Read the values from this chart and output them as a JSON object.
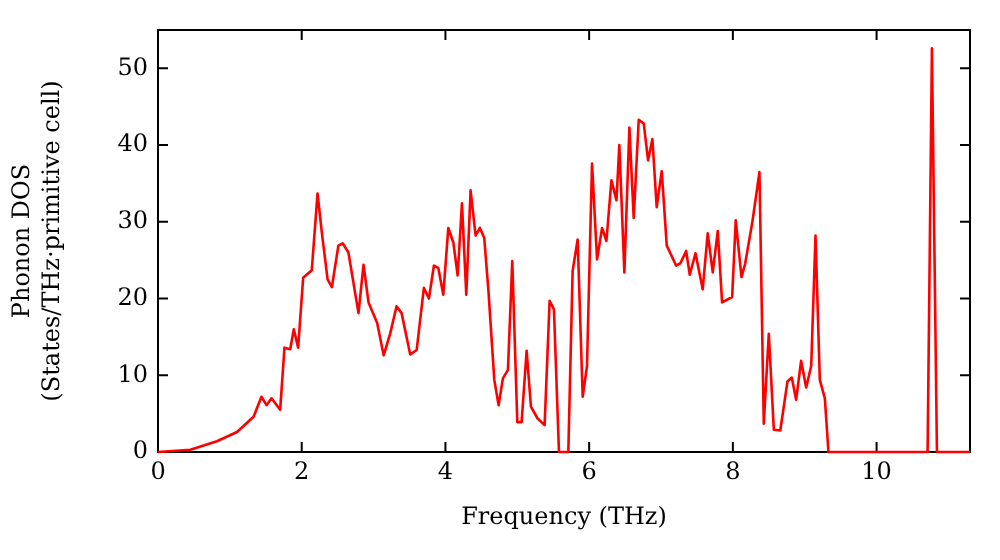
{
  "chart_data": {
    "type": "line",
    "xlabel": "Frequency (THz)",
    "ylabel": "Phonon DOS\n(States/THz·primitive cell)",
    "x": [
      0,
      0.45,
      0.82,
      1.1,
      1.33,
      1.44,
      1.51,
      1.58,
      1.7,
      1.76,
      1.84,
      1.89,
      1.95,
      2.02,
      2.14,
      2.22,
      2.28,
      2.36,
      2.42,
      2.51,
      2.57,
      2.65,
      2.79,
      2.86,
      2.93,
      3.05,
      3.14,
      3.23,
      3.32,
      3.39,
      3.51,
      3.6,
      3.7,
      3.77,
      3.84,
      3.9,
      3.97,
      4.04,
      4.11,
      4.17,
      4.23,
      4.29,
      4.35,
      4.42,
      4.48,
      4.54,
      4.6,
      4.68,
      4.74,
      4.8,
      4.87,
      4.93,
      5.0,
      5.06,
      5.13,
      5.19,
      5.28,
      5.38,
      5.45,
      5.51,
      5.58,
      5.71,
      5.77,
      5.84,
      5.91,
      5.97,
      6.04,
      6.11,
      6.18,
      6.24,
      6.31,
      6.38,
      6.42,
      6.49,
      6.56,
      6.62,
      6.69,
      6.76,
      6.82,
      6.88,
      6.94,
      7.01,
      7.08,
      7.21,
      7.27,
      7.35,
      7.4,
      7.48,
      7.58,
      7.65,
      7.72,
      7.79,
      7.85,
      7.99,
      8.04,
      8.12,
      8.17,
      8.27,
      8.37,
      8.43,
      8.5,
      8.57,
      8.66,
      8.76,
      8.82,
      8.88,
      8.95,
      9.02,
      9.09,
      9.15,
      9.21,
      9.28,
      9.33,
      10.71,
      10.77,
      10.84,
      11.3
    ],
    "series": [
      {
        "color": "#ff0000",
        "values": [
          0,
          0.3,
          1.4,
          2.6,
          4.6,
          7.2,
          6.1,
          7,
          5.5,
          13.6,
          13.4,
          16,
          13.6,
          22.7,
          23.7,
          33.7,
          28.6,
          22.5,
          21.5,
          26.9,
          27.2,
          26,
          18.1,
          24.4,
          19.5,
          16.8,
          12.6,
          15.4,
          19,
          18.1,
          12.7,
          13.3,
          21.4,
          20,
          24.3,
          24,
          20.5,
          29.2,
          27.3,
          23,
          32.4,
          20.5,
          34.1,
          28.2,
          29.2,
          27.9,
          20.8,
          9.4,
          6.1,
          9.6,
          10.7,
          24.9,
          3.9,
          3.9,
          13.2,
          5.9,
          4.4,
          3.5,
          19.7,
          18.6,
          0,
          0,
          23.6,
          27.7,
          7.2,
          11.2,
          37.6,
          25.1,
          29.2,
          27.5,
          35.4,
          32.8,
          40,
          23.4,
          42.3,
          30.5,
          43.3,
          42.8,
          38,
          40.8,
          31.9,
          36.6,
          26.9,
          24.3,
          24.6,
          26.2,
          23.1,
          25.9,
          21.2,
          28.5,
          23.4,
          28.8,
          19.5,
          20.2,
          30.2,
          22.8,
          24.5,
          29.9,
          36.5,
          3.7,
          15.4,
          2.9,
          2.8,
          9.2,
          9.7,
          6.8,
          11.9,
          8.4,
          11.2,
          28.2,
          9.4,
          7,
          0,
          0,
          52.6,
          0,
          0
        ]
      }
    ],
    "xlim": [
      0,
      11.3
    ],
    "ylim": [
      0,
      55
    ],
    "xticks": [
      0,
      2,
      4,
      6,
      8,
      10
    ],
    "yticks": [
      0,
      10,
      20,
      30,
      40,
      50
    ],
    "grid": false,
    "legend": false,
    "marker": "none",
    "line_style": "solid"
  }
}
